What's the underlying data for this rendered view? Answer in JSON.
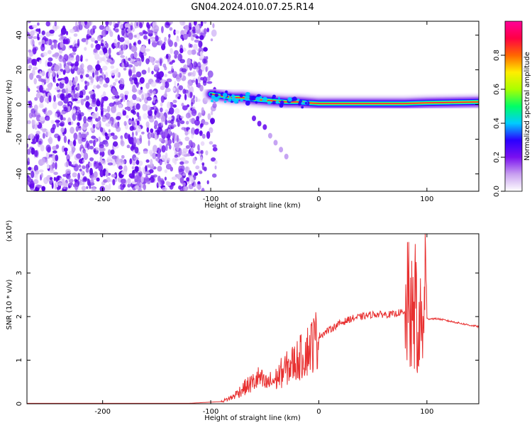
{
  "title": "GN04.2024.010.07.25.R14",
  "chart_data": [
    {
      "type": "heatmap",
      "xlabel": "Height of straight line (km)",
      "ylabel": "Frequency (Hz)",
      "xlim": [
        -270,
        148
      ],
      "ylim": [
        -50,
        48
      ],
      "x_ticks": [
        "-200",
        "-100",
        "0",
        "100"
      ],
      "y_ticks": [
        "-40",
        "-20",
        "0",
        "20",
        "40"
      ],
      "colorbar": {
        "label": "Normalized spectral amplitude",
        "range": [
          0,
          1
        ],
        "ticks": [
          "0.0",
          "0.2",
          "0.4",
          "0.6",
          "0.8"
        ],
        "colors": [
          "#ffffff",
          "#c9a0f0",
          "#7a10f0",
          "#2a00ff",
          "#00ccff",
          "#00ff66",
          "#aaff00",
          "#ffee00",
          "#ff6600",
          "#ff0044",
          "#ff0099"
        ]
      },
      "noise_region_x": [
        -270,
        -95
      ],
      "trace": [
        [
          -100,
          6
        ],
        [
          -90,
          5
        ],
        [
          -80,
          4
        ],
        [
          -70,
          4
        ],
        [
          -60,
          3
        ],
        [
          -50,
          2.5
        ],
        [
          -40,
          2
        ],
        [
          -30,
          1.5
        ],
        [
          -20,
          1.5
        ],
        [
          -10,
          1
        ],
        [
          0,
          0.5
        ],
        [
          20,
          0.5
        ],
        [
          40,
          0.5
        ],
        [
          60,
          0.5
        ],
        [
          80,
          0.5
        ],
        [
          100,
          1
        ],
        [
          120,
          1.2
        ],
        [
          148,
          1.5
        ]
      ],
      "branch": [
        [
          -60,
          -8
        ],
        [
          -55,
          -11
        ],
        [
          -50,
          -13
        ],
        [
          -45,
          -18
        ],
        [
          -40,
          -22
        ],
        [
          -35,
          -26
        ],
        [
          -30,
          -30
        ]
      ]
    },
    {
      "type": "line",
      "xlabel": "Height of straight line (km)",
      "ylabel": "SNR (10 * v/v)",
      "scale_label": "(x10⁴)",
      "xlim": [
        -270,
        148
      ],
      "ylim": [
        0,
        3.9
      ],
      "x_ticks": [
        "-200",
        "-100",
        "0",
        "100"
      ],
      "y_ticks": [
        "0",
        "1",
        "2",
        "3"
      ],
      "series": [
        {
          "color": "#e83030",
          "x": [
            -270,
            -200,
            -120,
            -90,
            -80,
            -70,
            -60,
            -55,
            -50,
            -45,
            -40,
            -35,
            -30,
            -25,
            -20,
            -15,
            -10,
            -5,
            0,
            10,
            20,
            30,
            40,
            50,
            60,
            70,
            75,
            80,
            85,
            88,
            90,
            92,
            94,
            96,
            98,
            100,
            105,
            110,
            120,
            130,
            140,
            148
          ],
          "y": [
            0.01,
            0.01,
            0.01,
            0.05,
            0.15,
            0.35,
            0.5,
            0.6,
            0.45,
            0.5,
            0.55,
            0.7,
            0.8,
            0.9,
            1.0,
            1.1,
            1.25,
            1.4,
            1.55,
            1.7,
            1.85,
            1.95,
            2.0,
            2.05,
            2.05,
            2.05,
            2.1,
            2.05,
            2.1,
            1.5,
            3.0,
            0.6,
            2.4,
            1.0,
            3.5,
            1.95,
            1.95,
            1.95,
            1.9,
            1.85,
            1.8,
            1.77
          ]
        }
      ]
    }
  ]
}
